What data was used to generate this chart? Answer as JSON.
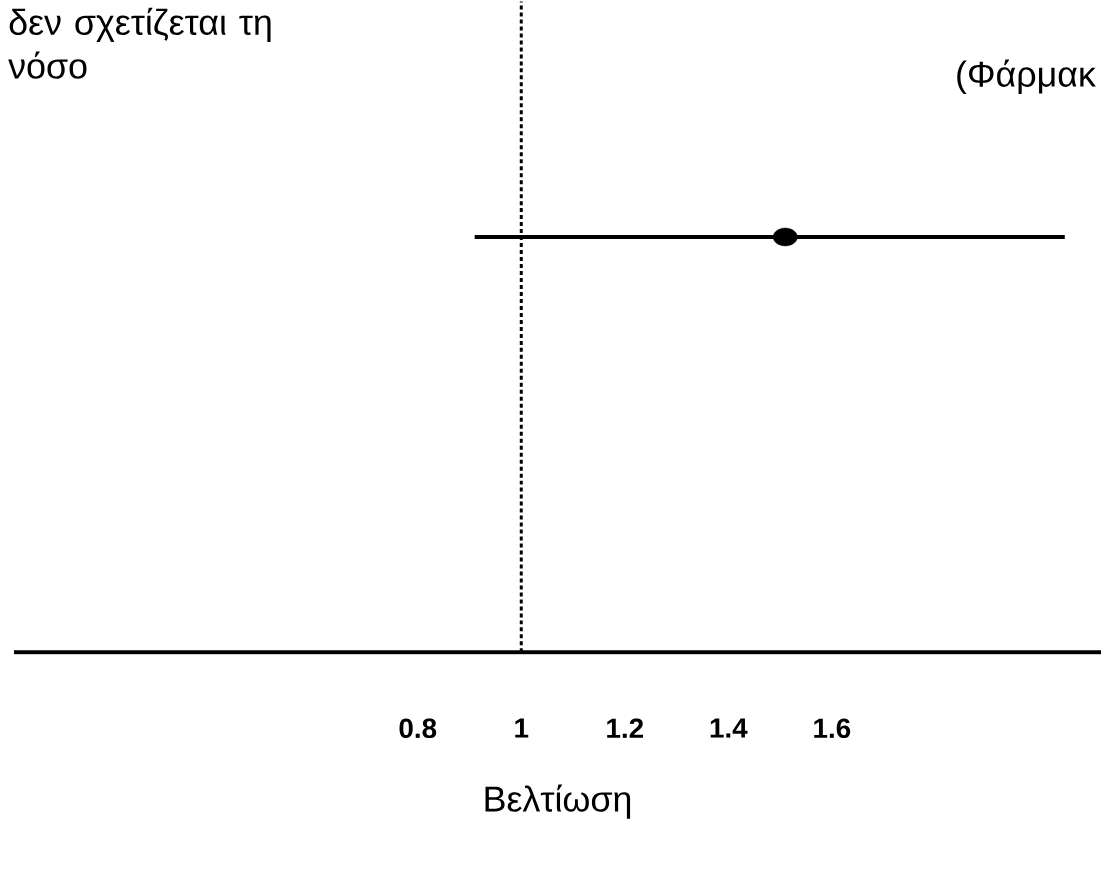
{
  "chart_data": {
    "type": "scatter",
    "orientation": "horizontal",
    "categories": [
      null
    ],
    "values": [
      1.51
    ],
    "errors": [
      [
        0.91,
        2.05
      ]
    ],
    "color": "#000000",
    "marker": "circle",
    "xlim": [
      0.02,
      2.12
    ],
    "xticks": [
      {
        "value": 0.8,
        "label": "0.8"
      },
      {
        "value": 1,
        "label": "1"
      },
      {
        "value": 1.2,
        "label": "1.2"
      },
      {
        "value": 1.4,
        "label": "1.4"
      },
      {
        "value": 1.6,
        "label": "1.6"
      }
    ],
    "xlabel": "Βελτίωση",
    "tick_labels": "x",
    "ref_lines": [
      {
        "axis": "x",
        "value": 1,
        "line_style": "dotted",
        "color": "#000000"
      }
    ],
    "annotations": [
      "δεν σχετίζεται τη νόσο",
      "(Φάρμακ"
    ]
  }
}
